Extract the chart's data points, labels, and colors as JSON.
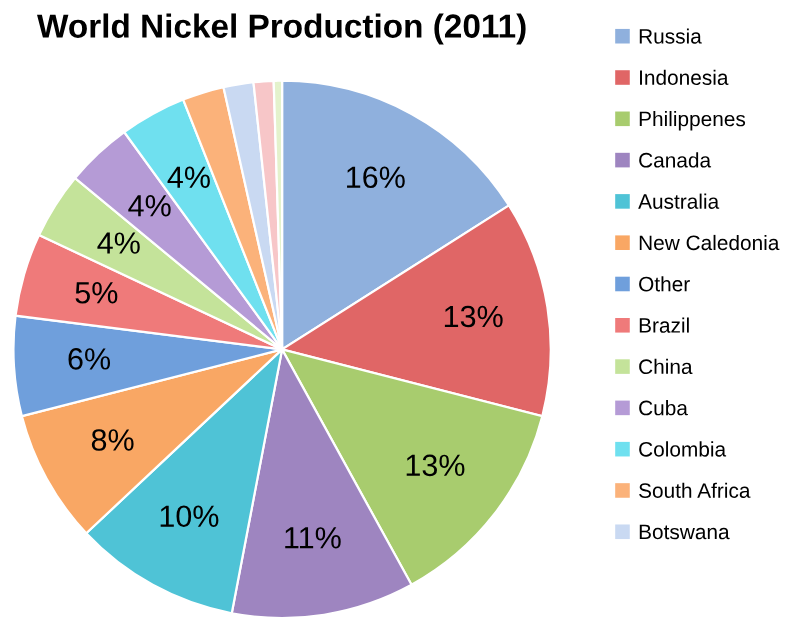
{
  "chart_data": {
    "type": "pie",
    "title": "World Nickel Production (2011)",
    "categories": [
      "Russia",
      "Indonesia",
      "Philippenes",
      "Canada",
      "Australia",
      "New Caledonia",
      "Other",
      "Brazil",
      "China",
      "Cuba",
      "Colombia",
      "South Africa",
      "Botswana",
      null,
      null
    ],
    "values": [
      16,
      13,
      13,
      11,
      10,
      8,
      6,
      5,
      4,
      4,
      4,
      2.5,
      1.8,
      1.2,
      0.5
    ],
    "value_labels": [
      "16%",
      "13%",
      "13%",
      "11%",
      "10%",
      "8%",
      "6%",
      "5%",
      "4%",
      "4%",
      "4%",
      null,
      null,
      null,
      null
    ],
    "colors": [
      "#8fb0dd",
      "#e06666",
      "#a8cc6e",
      "#9e85c0",
      "#4fc3d6",
      "#f9a764",
      "#6f9fdc",
      "#ef7a7a",
      "#c4e39a",
      "#b59bd6",
      "#6fe0ef",
      "#fbb27a",
      "#c9d9f2",
      "#f7c6c8",
      "#e4f2cc"
    ],
    "legend": "right"
  }
}
